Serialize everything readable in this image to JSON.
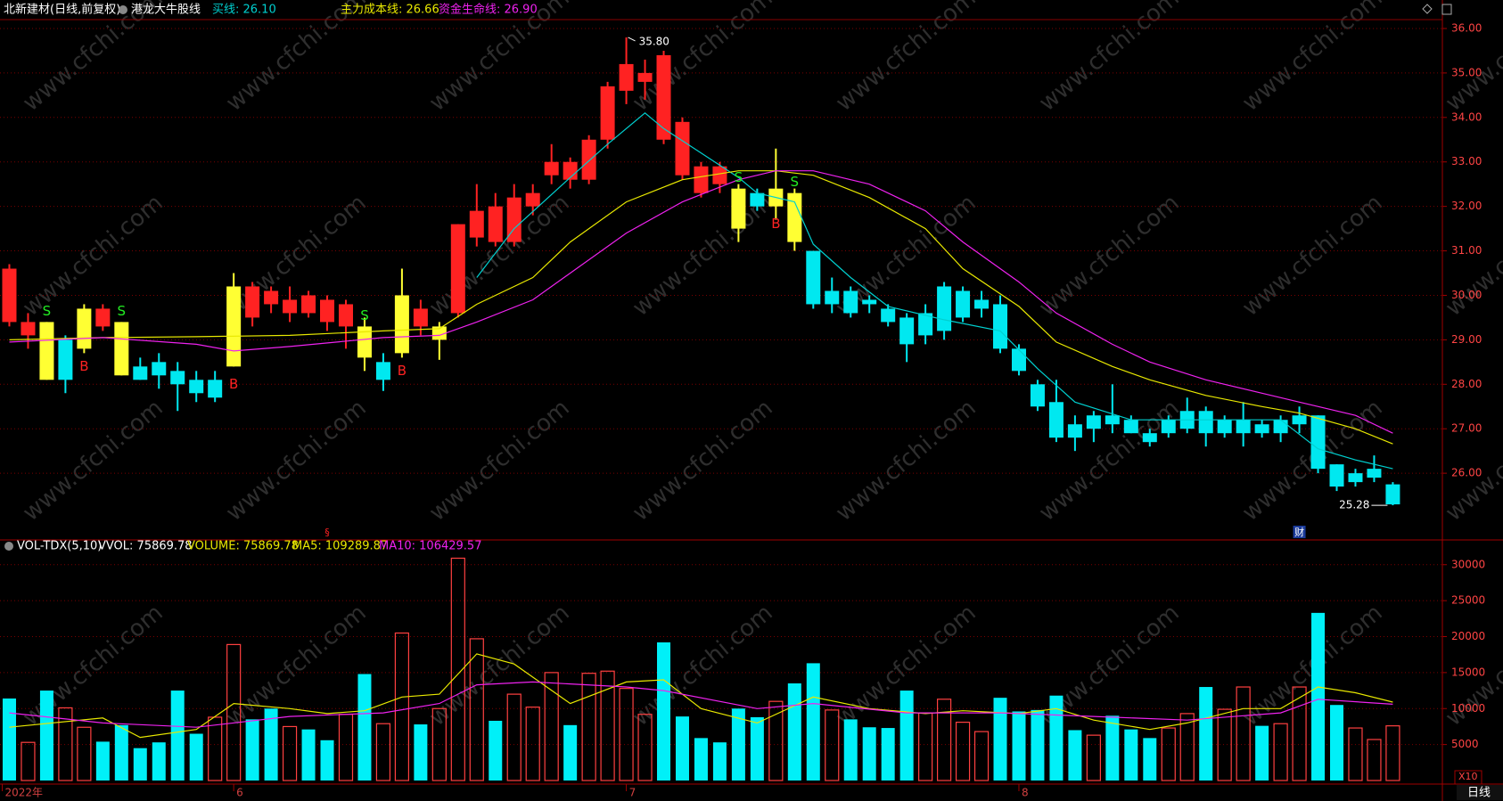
{
  "chart_data": [
    {
      "type": "candlestick",
      "title": "北新建材(日线,前复权)",
      "indicator": "港龙大牛股线",
      "xlim": [
        -0.5,
        76.65
      ],
      "ylim": [
        24.52,
        36.2
      ],
      "yticks": [
        {
          "value": 26,
          "label": "26.00"
        },
        {
          "value": 27,
          "label": "27.00"
        },
        {
          "value": 28,
          "label": "28.00"
        },
        {
          "value": 29,
          "label": "29.00"
        },
        {
          "value": 30,
          "label": "30.00"
        },
        {
          "value": 31,
          "label": "31.00"
        },
        {
          "value": 32,
          "label": "32.00"
        },
        {
          "value": 33,
          "label": "33.00"
        },
        {
          "value": 34,
          "label": "34.00"
        },
        {
          "value": 35,
          "label": "35.00"
        },
        {
          "value": 36,
          "label": "36.00"
        }
      ],
      "grid": true,
      "watermark": "www.cfchi.com",
      "candles": [
        [
          30.6,
          30.7,
          29.3,
          29.4
        ],
        [
          29.1,
          29.6,
          28.8,
          29.4
        ],
        [
          29.4,
          29.4,
          28.1,
          28.1
        ],
        [
          28.1,
          29.1,
          27.8,
          29.0
        ],
        [
          28.8,
          29.8,
          28.7,
          29.7
        ],
        [
          29.7,
          29.8,
          29.2,
          29.3
        ],
        [
          29.4,
          29.4,
          28.2,
          28.2
        ],
        [
          28.4,
          28.6,
          28.1,
          28.1
        ],
        [
          28.5,
          28.7,
          27.9,
          28.2
        ],
        [
          28.3,
          28.5,
          27.4,
          28.0
        ],
        [
          28.1,
          28.3,
          27.6,
          27.8
        ],
        [
          27.7,
          28.3,
          27.6,
          28.1
        ],
        [
          28.4,
          30.5,
          28.4,
          30.2
        ],
        [
          30.2,
          30.3,
          29.3,
          29.5
        ],
        [
          30.1,
          30.2,
          29.6,
          29.8
        ],
        [
          29.6,
          30.2,
          29.4,
          29.9
        ],
        [
          30.0,
          30.1,
          29.5,
          29.6
        ],
        [
          29.9,
          30.0,
          29.2,
          29.4
        ],
        [
          29.3,
          29.9,
          28.8,
          29.8
        ],
        [
          29.3,
          29.5,
          28.3,
          28.6
        ],
        [
          28.1,
          28.7,
          27.85,
          28.5
        ],
        [
          28.7,
          30.6,
          28.6,
          30.0
        ],
        [
          29.7,
          29.9,
          29.1,
          29.3
        ],
        [
          29.0,
          29.4,
          28.55,
          29.3
        ],
        [
          29.6,
          31.6,
          29.5,
          31.6
        ],
        [
          31.3,
          32.5,
          31.1,
          31.9
        ],
        [
          32.0,
          32.3,
          31.1,
          31.2
        ],
        [
          31.2,
          32.5,
          31.1,
          32.2
        ],
        [
          32.0,
          32.5,
          31.8,
          32.3
        ],
        [
          32.7,
          33.4,
          32.5,
          33.0
        ],
        [
          33.0,
          33.1,
          32.4,
          32.6
        ],
        [
          32.6,
          33.6,
          32.5,
          33.5
        ],
        [
          33.5,
          34.8,
          33.3,
          34.7
        ],
        [
          34.6,
          35.8,
          34.3,
          35.2
        ],
        [
          34.8,
          35.3,
          34.4,
          35.0
        ],
        [
          35.4,
          35.5,
          33.4,
          33.5
        ],
        [
          33.9,
          34.0,
          32.6,
          32.7
        ],
        [
          32.9,
          33.0,
          32.2,
          32.3
        ],
        [
          32.9,
          33.0,
          32.3,
          32.5
        ],
        [
          32.4,
          32.5,
          31.2,
          31.5
        ],
        [
          32.3,
          32.4,
          31.9,
          32.0
        ],
        [
          32.0,
          33.3,
          31.7,
          32.4
        ],
        [
          32.3,
          32.4,
          31.0,
          31.2
        ],
        [
          31.0,
          31.0,
          29.7,
          29.8
        ],
        [
          29.8,
          30.4,
          29.6,
          30.1
        ],
        [
          30.1,
          30.2,
          29.5,
          29.6
        ],
        [
          29.9,
          30.0,
          29.6,
          29.8
        ],
        [
          29.7,
          29.8,
          29.3,
          29.4
        ],
        [
          29.5,
          29.6,
          28.5,
          28.9
        ],
        [
          29.1,
          29.8,
          28.9,
          29.6
        ],
        [
          29.2,
          30.3,
          29.0,
          30.2
        ],
        [
          29.5,
          30.2,
          29.4,
          30.1
        ],
        [
          29.7,
          30.1,
          29.5,
          29.9
        ],
        [
          29.8,
          30.0,
          28.7,
          28.8
        ],
        [
          28.8,
          28.9,
          28.2,
          28.3
        ],
        [
          28.0,
          28.1,
          27.4,
          27.5
        ],
        [
          27.6,
          28.1,
          26.7,
          26.8
        ],
        [
          27.1,
          27.3,
          26.5,
          26.8
        ],
        [
          27.0,
          27.4,
          26.7,
          27.3
        ],
        [
          27.3,
          28.0,
          26.9,
          27.1
        ],
        [
          27.2,
          27.3,
          26.9,
          26.9
        ],
        [
          26.9,
          27.0,
          26.6,
          26.7
        ],
        [
          26.9,
          27.3,
          26.8,
          27.2
        ],
        [
          27.0,
          27.7,
          26.9,
          27.4
        ],
        [
          27.4,
          27.5,
          26.6,
          26.9
        ],
        [
          26.9,
          27.3,
          26.8,
          27.2
        ],
        [
          26.9,
          27.6,
          26.6,
          27.2
        ],
        [
          27.1,
          27.2,
          26.8,
          26.9
        ],
        [
          26.9,
          27.3,
          26.7,
          27.2
        ],
        [
          27.1,
          27.5,
          26.9,
          27.3
        ],
        [
          27.3,
          27.3,
          26.0,
          26.1
        ],
        [
          26.2,
          26.2,
          25.6,
          25.7
        ],
        [
          25.8,
          26.1,
          25.7,
          26.0
        ],
        [
          25.9,
          26.4,
          25.8,
          26.1
        ],
        [
          25.3,
          25.8,
          25.28,
          25.75
        ]
      ],
      "candle_colors": [
        "#ff2222",
        "#ff2222",
        "#ffff33",
        "#00e8f0",
        "#ffff33",
        "#ff2222",
        "#ffff33",
        "#00e8f0",
        "#00e8f0",
        "#00e8f0",
        "#00e8f0",
        "#00e8f0",
        "#ffff33",
        "#ff2222",
        "#ff2222",
        "#ff2222",
        "#ff2222",
        "#ff2222",
        "#ff2222",
        "#ffff33",
        "#00e8f0",
        "#ffff33",
        "#ff2222",
        "#ffff33",
        "#ff2222",
        "#ff2222",
        "#ff2222",
        "#ff2222",
        "#ff2222",
        "#ff2222",
        "#ff2222",
        "#ff2222",
        "#ff2222",
        "#ff2222",
        "#ff2222",
        "#ff2222",
        "#ff2222",
        "#ff2222",
        "#ff2222",
        "#ffff33",
        "#00e8f0",
        "#ffff33",
        "#ffff33",
        "#00e8f0",
        "#00e8f0",
        "#00e8f0",
        "#00e8f0",
        "#00e8f0",
        "#00e8f0",
        "#00e8f0",
        "#00e8f0",
        "#00e8f0",
        "#00e8f0",
        "#00e8f0",
        "#00e8f0",
        "#00e8f0",
        "#00e8f0",
        "#00e8f0",
        "#00e8f0",
        "#00e8f0",
        "#00e8f0",
        "#00e8f0",
        "#00e8f0",
        "#00e8f0",
        "#00e8f0",
        "#00e8f0",
        "#00e8f0",
        "#00e8f0",
        "#00e8f0",
        "#00e8f0",
        "#00e8f0",
        "#00e8f0",
        "#00e8f0",
        "#00e8f0",
        "#00e8f0"
      ],
      "series": [
        {
          "name": "买线: 26.10",
          "color": "#00d0d0",
          "x": [
            25,
            27,
            30,
            32,
            34,
            35,
            37,
            39,
            40,
            42,
            43,
            45,
            47,
            50,
            53,
            55,
            57,
            60,
            63,
            66,
            68,
            70,
            72,
            74
          ],
          "values": [
            30.4,
            31.5,
            32.65,
            33.4,
            34.1,
            33.75,
            33.2,
            32.65,
            32.3,
            32.1,
            31.15,
            30.4,
            29.75,
            29.45,
            29.2,
            28.35,
            27.6,
            27.2,
            27.2,
            27.2,
            27.2,
            26.55,
            26.3,
            26.1
          ]
        },
        {
          "name": "主力成本线: 26.66",
          "color": "#e8e800",
          "x": [
            0,
            5,
            10,
            15,
            20,
            23,
            25,
            28,
            30,
            33,
            36,
            39,
            41,
            43,
            46,
            49,
            51,
            54,
            56,
            59,
            61,
            64,
            67,
            69,
            72,
            74
          ],
          "values": [
            29.0,
            29.05,
            29.07,
            29.1,
            29.2,
            29.25,
            29.8,
            30.4,
            31.2,
            32.1,
            32.6,
            32.8,
            32.8,
            32.7,
            32.2,
            31.5,
            30.6,
            29.75,
            28.95,
            28.4,
            28.1,
            27.75,
            27.5,
            27.35,
            27.0,
            26.66
          ]
        },
        {
          "name": "资金生命线: 26.90",
          "color": "#ee22ee",
          "x": [
            0,
            5,
            10,
            12,
            15,
            20,
            23,
            25,
            28,
            30,
            33,
            36,
            39,
            41,
            43,
            46,
            49,
            51,
            54,
            56,
            59,
            61,
            64,
            67,
            69,
            72,
            74
          ],
          "values": [
            28.95,
            29.05,
            28.9,
            28.75,
            28.85,
            29.05,
            29.1,
            29.4,
            29.9,
            30.5,
            31.4,
            32.1,
            32.6,
            32.8,
            32.8,
            32.5,
            31.9,
            31.2,
            30.3,
            29.6,
            28.9,
            28.5,
            28.1,
            27.8,
            27.6,
            27.3,
            26.9
          ]
        }
      ],
      "signals": [
        {
          "index": 2,
          "label": "S"
        },
        {
          "index": 4,
          "label": "B"
        },
        {
          "index": 6,
          "label": "S"
        },
        {
          "index": 12,
          "label": "B"
        },
        {
          "index": 19,
          "label": "S"
        },
        {
          "index": 21,
          "label": "B"
        },
        {
          "index": 39,
          "label": "S"
        },
        {
          "index": 41,
          "label": "B"
        },
        {
          "index": 42,
          "label": "S"
        }
      ],
      "annotations": [
        {
          "index": 33,
          "value": 35.8,
          "label": "35.80"
        },
        {
          "index": 74,
          "value": 25.28,
          "label": "25.28"
        }
      ],
      "markers": [
        {
          "index": 17,
          "label": "§"
        },
        {
          "index": 69,
          "label": "财"
        }
      ]
    },
    {
      "type": "volume",
      "title": "VOL-TDX(5,10)",
      "header": [
        "VVOL: 75869.78",
        "VOLUME: 75869.78"
      ],
      "header_colors": [
        "#ffffff",
        "#e8e800"
      ],
      "xlim": [
        -0.5,
        76.65
      ],
      "ylim": [
        0,
        32200
      ],
      "yticks": [
        5000,
        10000,
        15000,
        20000,
        25000,
        30000
      ],
      "grid": true,
      "scale_label": "X10",
      "period": "日线",
      "values": [
        11400,
        5300,
        12500,
        10100,
        7400,
        5400,
        7700,
        4500,
        5300,
        12500,
        6500,
        8800,
        18900,
        8500,
        10000,
        7500,
        7100,
        5600,
        9200,
        14800,
        7900,
        20500,
        7800,
        10000,
        30900,
        19700,
        8300,
        12000,
        10200,
        15000,
        7700,
        14900,
        15200,
        12800,
        9200,
        19200,
        8900,
        5900,
        5300,
        10000,
        8800,
        11000,
        13500,
        16300,
        9800,
        8500,
        7400,
        7300,
        12500,
        9400,
        11300,
        8100,
        6800,
        11500,
        9600,
        9800,
        11800,
        7000,
        6300,
        9000,
        7100,
        5900,
        7300,
        9300,
        13000,
        9900,
        13000,
        7600,
        7900,
        13000,
        23300,
        10500,
        7300,
        5700,
        7600
      ],
      "series": [
        {
          "name": "MA5: 109289.87",
          "color": "#e8e800",
          "x": [
            0,
            5,
            7,
            10,
            12,
            15,
            17,
            19,
            21,
            23,
            25,
            27,
            30,
            33,
            35,
            37,
            40,
            43,
            46,
            49,
            51,
            54,
            56,
            58,
            61,
            63,
            66,
            68,
            70,
            72,
            74
          ],
          "values": [
            7400,
            8700,
            6000,
            7100,
            10700,
            10000,
            9300,
            9700,
            11600,
            12000,
            17600,
            16200,
            10700,
            13700,
            14000,
            10000,
            8000,
            11600,
            10000,
            9300,
            9700,
            9300,
            10000,
            8400,
            7100,
            8000,
            10000,
            10000,
            13000,
            12200,
            10900
          ]
        },
        {
          "name": "MA10: 106429.57",
          "color": "#ee22ee",
          "x": [
            0,
            5,
            10,
            15,
            20,
            23,
            25,
            28,
            33,
            35,
            40,
            43,
            48,
            53,
            58,
            63,
            68,
            70,
            74
          ],
          "values": [
            9400,
            8000,
            7400,
            8900,
            9400,
            10700,
            13300,
            13700,
            13000,
            12500,
            10000,
            10700,
            9400,
            9400,
            8900,
            8400,
            9400,
            11300,
            10600
          ]
        }
      ],
      "x_labels": [
        {
          "index": 0,
          "label": "2022年"
        },
        {
          "index": 12,
          "label": "6"
        },
        {
          "index": 33,
          "label": "7"
        },
        {
          "index": 54,
          "label": "8"
        }
      ]
    }
  ]
}
